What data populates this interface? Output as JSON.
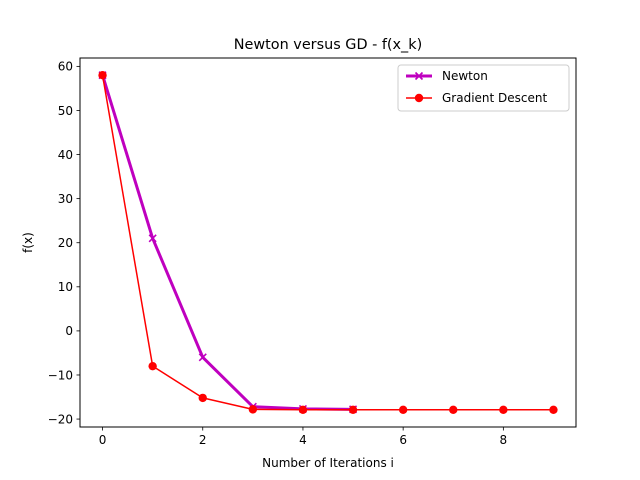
{
  "chart_data": {
    "type": "line",
    "title": "Newton versus GD - f(x_k)",
    "xlabel": "Number of Iterations i",
    "ylabel": "f(x)",
    "xlim": [
      -0.45,
      9.45
    ],
    "ylim": [
      -21.8,
      61.9
    ],
    "xticks": [
      0,
      2,
      4,
      6,
      8
    ],
    "yticks": [
      -20,
      -10,
      0,
      10,
      20,
      30,
      40,
      50,
      60
    ],
    "grid": false,
    "legend_position": "upper right",
    "series": [
      {
        "name": "Newton",
        "color": "#bf00bf",
        "marker": "x",
        "x": [
          0,
          1,
          2,
          3,
          4,
          5
        ],
        "y": [
          58.0,
          21.0,
          -6.0,
          -17.2,
          -17.7,
          -17.8
        ]
      },
      {
        "name": "Gradient Descent",
        "color": "#ff0000",
        "marker": "circle",
        "x": [
          0,
          1,
          2,
          3,
          4,
          5,
          6,
          7,
          8,
          9
        ],
        "y": [
          58.0,
          -8.0,
          -15.2,
          -17.8,
          -17.9,
          -17.9,
          -17.9,
          -17.9,
          -17.9,
          -17.9
        ]
      }
    ]
  }
}
